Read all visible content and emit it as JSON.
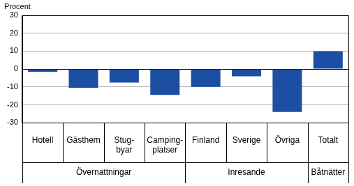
{
  "chart_data": {
    "type": "bar",
    "y_label": "Procent",
    "categories": [
      "Hotell",
      "Gästhem",
      [
        "Stug-",
        "byar"
      ],
      [
        "Camping-",
        "platser"
      ],
      "Finland",
      "Sverige",
      "Övriga",
      "Totalt"
    ],
    "category_groups": [
      "Övernattningar",
      "Övernattningar",
      "Övernattningar",
      "Övernattningar",
      "Inresande",
      "Inresande",
      "Inresande",
      "Båtnätter"
    ],
    "values": [
      -1.5,
      -10.5,
      -7.5,
      -14.5,
      -10,
      -4,
      -24,
      10
    ],
    "color": "#1c4fa3",
    "ylim": [
      -30,
      30
    ],
    "yticks": [
      -30,
      -20,
      -10,
      0,
      10,
      20,
      30
    ],
    "grid": true
  }
}
